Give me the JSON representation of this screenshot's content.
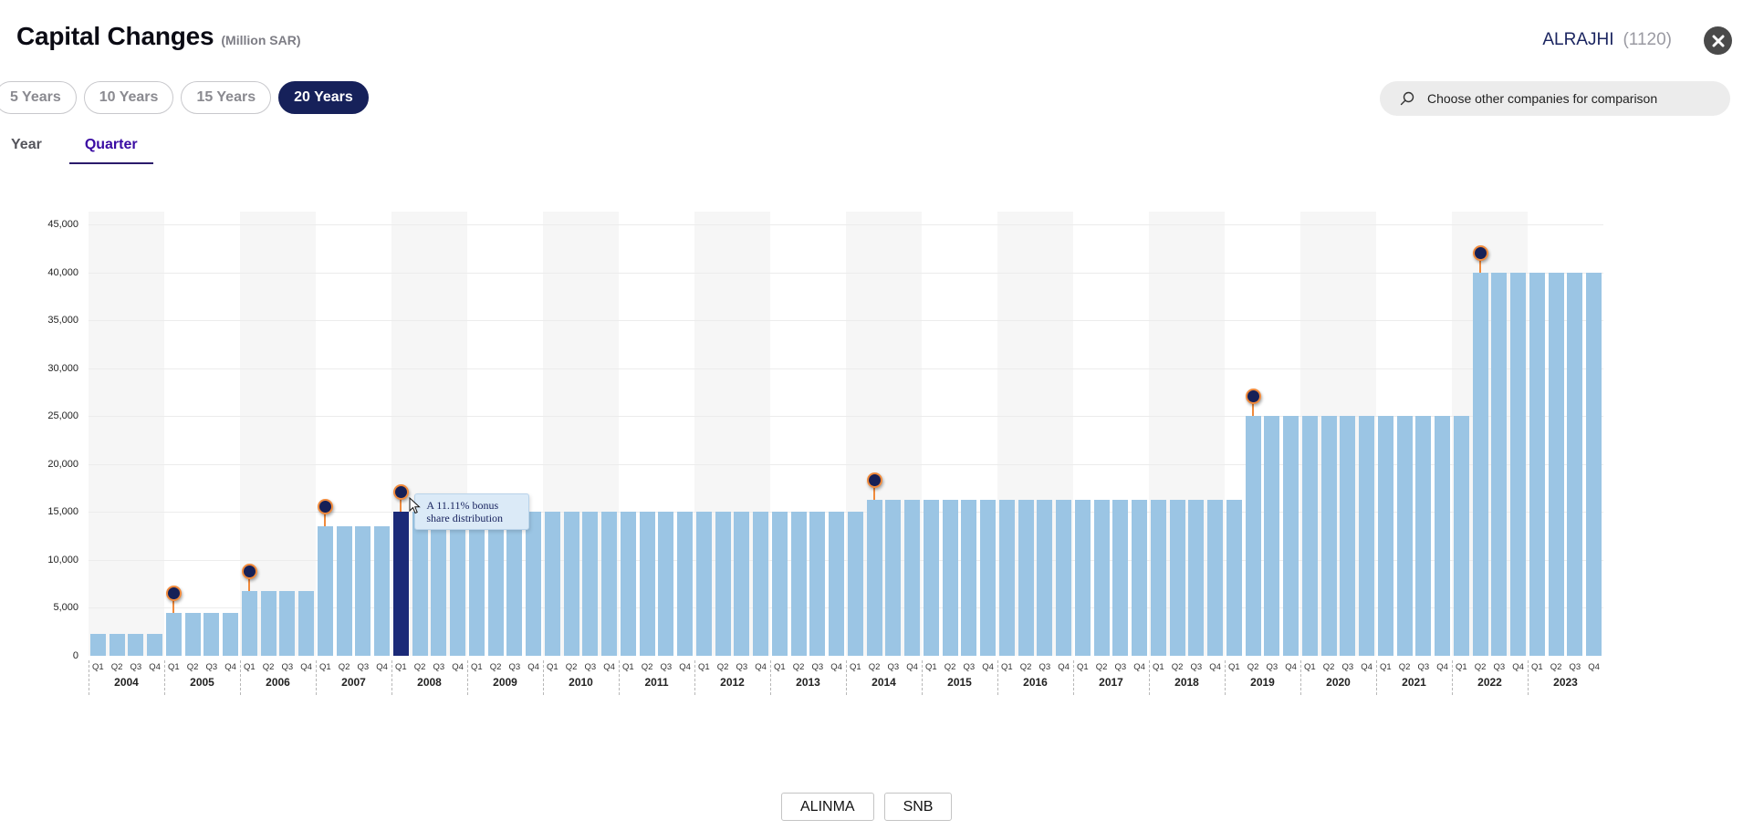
{
  "header": {
    "title": "Capital Changes",
    "unit": "(Million SAR)",
    "company_name": "ALRAJHI",
    "company_code": "(1120)",
    "close_icon": "close-icon"
  },
  "range_buttons": [
    {
      "label": "5 Years",
      "active": false
    },
    {
      "label": "10 Years",
      "active": false
    },
    {
      "label": "15 Years",
      "active": false
    },
    {
      "label": "20 Years",
      "active": true
    }
  ],
  "period_tabs": [
    {
      "label": "Year",
      "active": false
    },
    {
      "label": "Quarter",
      "active": true
    }
  ],
  "search": {
    "icon": "search-icon",
    "placeholder": "Choose other companies for comparison"
  },
  "tooltip": {
    "text_line1": "A 11.11% bonus",
    "text_line2": "share distribution"
  },
  "compare_chips": [
    {
      "label": "ALINMA"
    },
    {
      "label": "SNB"
    }
  ],
  "colors": {
    "bar": "#9bc5e4",
    "bar_selected": "#1b2a78",
    "pin_fill": "#162057",
    "pin_ring": "#f08a3c",
    "accent_navy": "#16215a",
    "tab_active": "#3a0ca3"
  },
  "chart_data": {
    "type": "bar",
    "title": "Capital Changes",
    "subtitle": "(Million SAR)",
    "xlabel": "",
    "ylabel": "",
    "ylim": [
      0,
      45000
    ],
    "yticks": [
      0,
      5000,
      10000,
      15000,
      20000,
      25000,
      30000,
      35000,
      40000,
      45000
    ],
    "ytick_labels": [
      "0",
      "5,000",
      "10,000",
      "15,000",
      "20,000",
      "25,000",
      "30,000",
      "35,000",
      "40,000",
      "45,000"
    ],
    "grid": true,
    "legend": null,
    "years": [
      "2004",
      "2005",
      "2006",
      "2007",
      "2008",
      "2009",
      "2010",
      "2011",
      "2012",
      "2013",
      "2014",
      "2015",
      "2016",
      "2017",
      "2018",
      "2019",
      "2020",
      "2021",
      "2022",
      "2023"
    ],
    "quarters": [
      "Q1",
      "Q2",
      "Q3",
      "Q4"
    ],
    "categories": [
      "2004 Q1",
      "2004 Q2",
      "2004 Q3",
      "2004 Q4",
      "2005 Q1",
      "2005 Q2",
      "2005 Q3",
      "2005 Q4",
      "2006 Q1",
      "2006 Q2",
      "2006 Q3",
      "2006 Q4",
      "2007 Q1",
      "2007 Q2",
      "2007 Q3",
      "2007 Q4",
      "2008 Q1",
      "2008 Q2",
      "2008 Q3",
      "2008 Q4",
      "2009 Q1",
      "2009 Q2",
      "2009 Q3",
      "2009 Q4",
      "2010 Q1",
      "2010 Q2",
      "2010 Q3",
      "2010 Q4",
      "2011 Q1",
      "2011 Q2",
      "2011 Q3",
      "2011 Q4",
      "2012 Q1",
      "2012 Q2",
      "2012 Q3",
      "2012 Q4",
      "2013 Q1",
      "2013 Q2",
      "2013 Q3",
      "2013 Q4",
      "2014 Q1",
      "2014 Q2",
      "2014 Q3",
      "2014 Q4",
      "2015 Q1",
      "2015 Q2",
      "2015 Q3",
      "2015 Q4",
      "2016 Q1",
      "2016 Q2",
      "2016 Q3",
      "2016 Q4",
      "2017 Q1",
      "2017 Q2",
      "2017 Q3",
      "2017 Q4",
      "2018 Q1",
      "2018 Q2",
      "2018 Q3",
      "2018 Q4",
      "2019 Q1",
      "2019 Q2",
      "2019 Q3",
      "2019 Q4",
      "2020 Q1",
      "2020 Q2",
      "2020 Q3",
      "2020 Q4",
      "2021 Q1",
      "2021 Q2",
      "2021 Q3",
      "2021 Q4",
      "2022 Q1",
      "2022 Q2",
      "2022 Q3",
      "2022 Q4",
      "2023 Q1",
      "2023 Q2",
      "2023 Q3",
      "2023 Q4"
    ],
    "values": [
      2250,
      2250,
      2250,
      2250,
      4500,
      4500,
      4500,
      4500,
      6750,
      6750,
      6750,
      6750,
      13500,
      13500,
      13500,
      13500,
      15000,
      15000,
      15000,
      15000,
      15000,
      15000,
      15000,
      15000,
      15000,
      15000,
      15000,
      15000,
      15000,
      15000,
      15000,
      15000,
      15000,
      15000,
      15000,
      15000,
      15000,
      15000,
      15000,
      15000,
      15000,
      16250,
      16250,
      16250,
      16250,
      16250,
      16250,
      16250,
      16250,
      16250,
      16250,
      16250,
      16250,
      16250,
      16250,
      16250,
      16250,
      16250,
      16250,
      16250,
      16250,
      25000,
      25000,
      25000,
      25000,
      25000,
      25000,
      25000,
      25000,
      25000,
      25000,
      25000,
      25000,
      40000,
      40000,
      40000,
      40000,
      40000,
      40000,
      40000
    ],
    "event_markers": [
      {
        "category": "2005 Q1",
        "index": 4
      },
      {
        "category": "2006 Q1",
        "index": 8
      },
      {
        "category": "2007 Q1",
        "index": 12
      },
      {
        "category": "2008 Q1",
        "index": 16,
        "selected": true,
        "tooltip": "A 11.11% bonus share distribution"
      },
      {
        "category": "2014 Q2",
        "index": 41
      },
      {
        "category": "2019 Q2",
        "index": 61
      },
      {
        "category": "2022 Q2",
        "index": 73
      }
    ],
    "selected_index": 16
  }
}
